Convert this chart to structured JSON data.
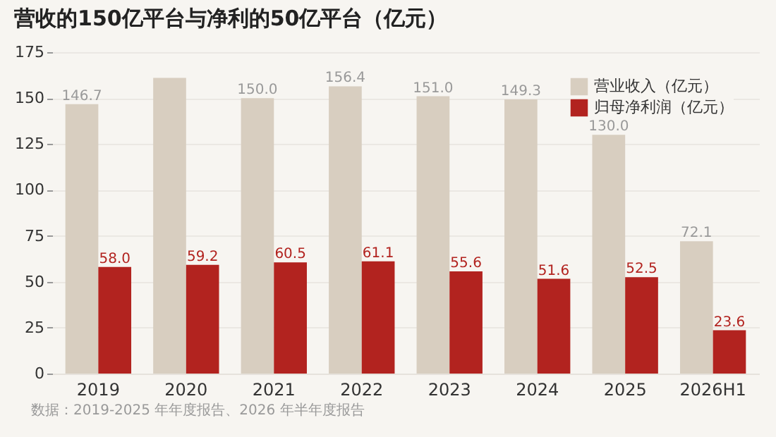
{
  "chart_data": {
    "type": "bar",
    "title": "营收的150亿平台与净利的50亿平台（亿元）",
    "categories": [
      "2019",
      "2020",
      "2021",
      "2022",
      "2023",
      "2024",
      "2025",
      "2026H1"
    ],
    "series": [
      {
        "name": "营业收入（亿元）",
        "color": "#d8cec0",
        "values": [
          146.7,
          161,
          150.0,
          156.4,
          151.0,
          149.3,
          130.0,
          72.1
        ],
        "value_labels": [
          "146.7",
          null,
          "150.0",
          "156.4",
          "151.0",
          "149.3",
          "130.0",
          "72.1"
        ]
      },
      {
        "name": "归母净利润（亿元）",
        "color": "#b2231f",
        "values": [
          58.0,
          59.2,
          60.5,
          61.1,
          55.6,
          51.6,
          52.5,
          23.6
        ],
        "value_labels": [
          "58.0",
          "59.2",
          "60.5",
          "61.1",
          "55.6",
          "51.6",
          "52.5",
          "23.6"
        ]
      }
    ],
    "ylim": [
      0,
      175
    ],
    "yticks": [
      0,
      25,
      50,
      75,
      100,
      125,
      150,
      175
    ],
    "grid": "y",
    "legend": "top right",
    "annotations": [
      "数据：2019-2025 年年度报告、2026 年半年度报告"
    ]
  }
}
